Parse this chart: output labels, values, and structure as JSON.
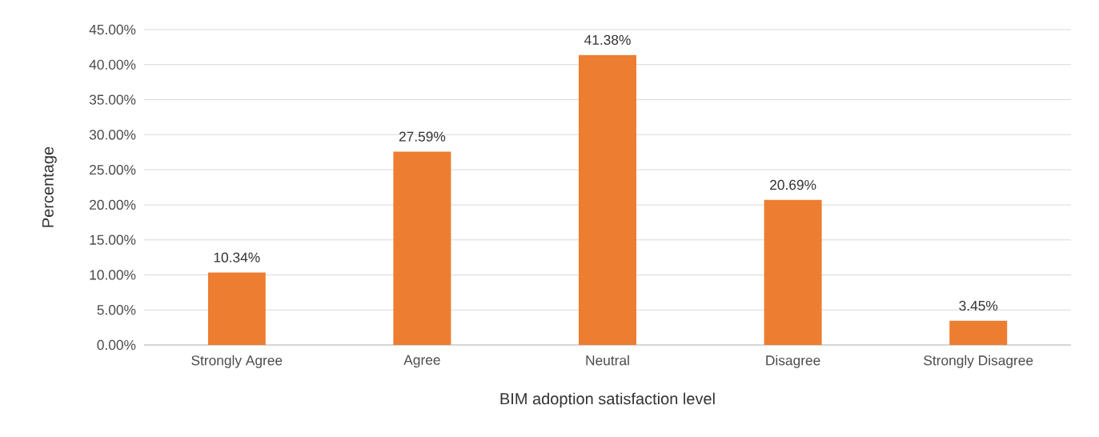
{
  "chart_data": {
    "type": "bar",
    "xlabel": "BIM adoption satisfaction level",
    "ylabel": "Percentage",
    "categories": [
      "Strongly Agree",
      "Agree",
      "Neutral",
      "Disagree",
      "Strongly Disagree"
    ],
    "values": [
      10.34,
      27.59,
      41.38,
      20.69,
      3.45
    ],
    "value_labels": [
      "10.34%",
      "27.59%",
      "41.38%",
      "20.69%",
      "3.45%"
    ],
    "color": "#ed7d31",
    "ylim": [
      0,
      45
    ],
    "yticks": [
      {
        "value": 0,
        "label": "0.00%"
      },
      {
        "value": 5,
        "label": "5.00%"
      },
      {
        "value": 10,
        "label": "10.00%"
      },
      {
        "value": 15,
        "label": "15.00%"
      },
      {
        "value": 20,
        "label": "20.00%"
      },
      {
        "value": 25,
        "label": "25.00%"
      },
      {
        "value": 30,
        "label": "30.00%"
      },
      {
        "value": 35,
        "label": "35.00%"
      },
      {
        "value": 40,
        "label": "40.00%"
      },
      {
        "value": 45,
        "label": "45.00%"
      }
    ],
    "grid": "y"
  }
}
